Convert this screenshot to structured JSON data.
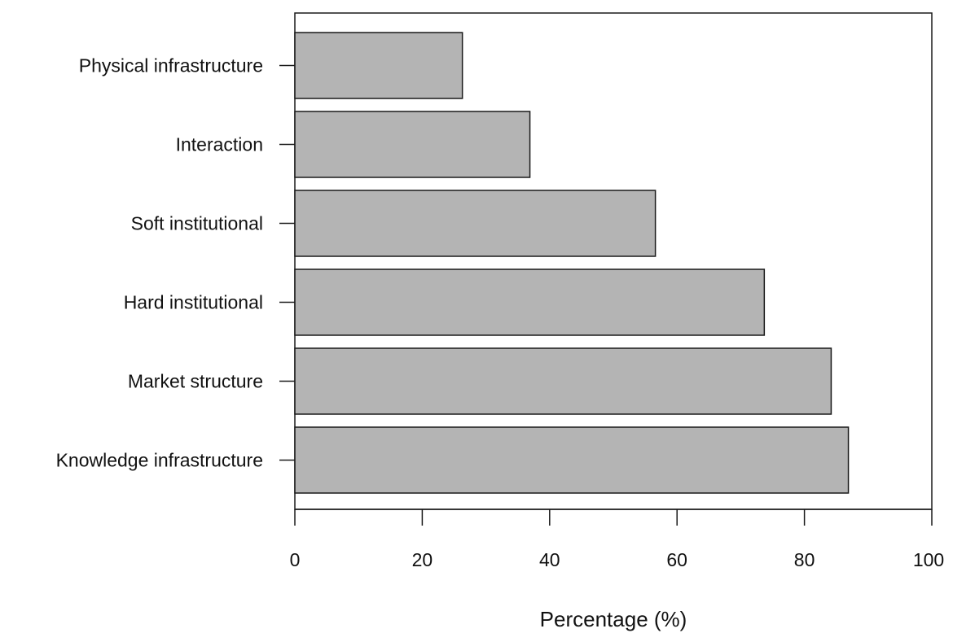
{
  "chart_data": {
    "type": "bar",
    "orientation": "horizontal",
    "categories": [
      "Physical infrastructure",
      "Interaction",
      "Soft institutional",
      "Hard institutional",
      "Market structure",
      "Knowledge infrastructure"
    ],
    "values": [
      26.3,
      36.9,
      56.6,
      73.7,
      84.2,
      86.9
    ],
    "title": "",
    "xlabel": "Percentage (%)",
    "ylabel": "",
    "xlim": [
      0,
      100
    ],
    "xticks": [
      "0",
      "20",
      "40",
      "60",
      "80",
      "100"
    ],
    "grid": false,
    "legend": "none",
    "bar_color": "#b4b4b4",
    "bar_edge_color": "#1a1a1a"
  }
}
